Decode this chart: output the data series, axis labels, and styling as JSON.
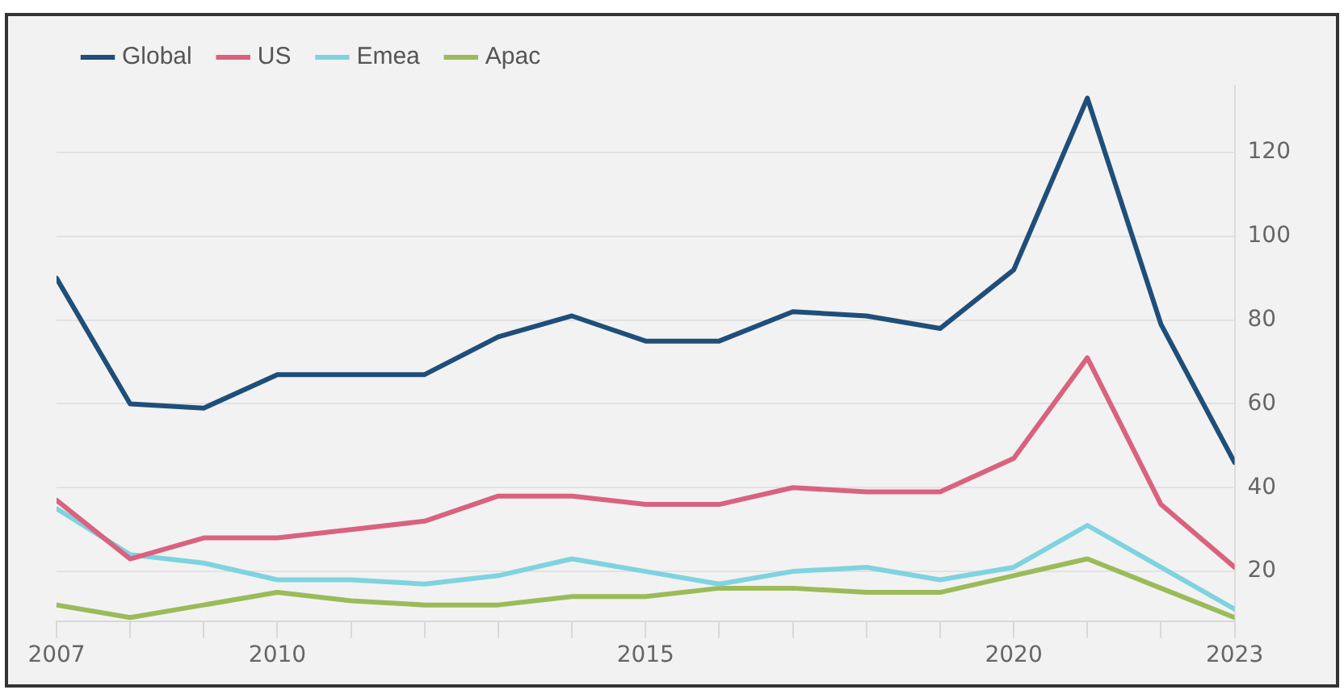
{
  "chart_data": {
    "type": "line",
    "x": [
      2007,
      2008,
      2009,
      2010,
      2011,
      2012,
      2013,
      2014,
      2015,
      2016,
      2017,
      2018,
      2019,
      2020,
      2021,
      2022,
      2023
    ],
    "series": [
      {
        "name": "Global",
        "color": "#1f4e79",
        "values": [
          90,
          60,
          59,
          67,
          67,
          67,
          76,
          81,
          75,
          75,
          82,
          81,
          78,
          92,
          133,
          79,
          46
        ]
      },
      {
        "name": "US",
        "color": "#d9627f",
        "values": [
          37,
          23,
          28,
          28,
          30,
          32,
          38,
          38,
          36,
          36,
          40,
          39,
          39,
          47,
          71,
          36,
          21
        ]
      },
      {
        "name": "Emea",
        "color": "#7fd3df",
        "values": [
          35,
          24,
          22,
          18,
          18,
          17,
          19,
          23,
          20,
          17,
          20,
          21,
          18,
          21,
          31,
          21,
          11
        ]
      },
      {
        "name": "Apac",
        "color": "#9bbb59",
        "values": [
          12,
          9,
          12,
          15,
          13,
          12,
          12,
          14,
          14,
          16,
          16,
          15,
          15,
          19,
          23,
          16,
          9
        ]
      }
    ],
    "xlim": [
      2007,
      2023
    ],
    "xticks": [
      2007,
      {
        "value": 2008,
        "label": null
      },
      {
        "value": 2009,
        "label": null
      },
      2010,
      {
        "value": 2011,
        "label": null
      },
      {
        "value": 2012,
        "label": null
      },
      {
        "value": 2013,
        "label": null
      },
      {
        "value": 2014,
        "label": null
      },
      2015,
      {
        "value": 2016,
        "label": null
      },
      {
        "value": 2017,
        "label": null
      },
      {
        "value": 2018,
        "label": null
      },
      {
        "value": 2019,
        "label": null
      },
      2020,
      {
        "value": 2021,
        "label": null
      },
      {
        "value": 2022,
        "label": null
      },
      2023
    ],
    "ylim": [
      8,
      136
    ],
    "yticks": [
      20,
      40,
      60,
      80,
      100,
      120
    ],
    "grid": "y",
    "legend": "top left",
    "marker": "none",
    "line_style": "solid"
  }
}
